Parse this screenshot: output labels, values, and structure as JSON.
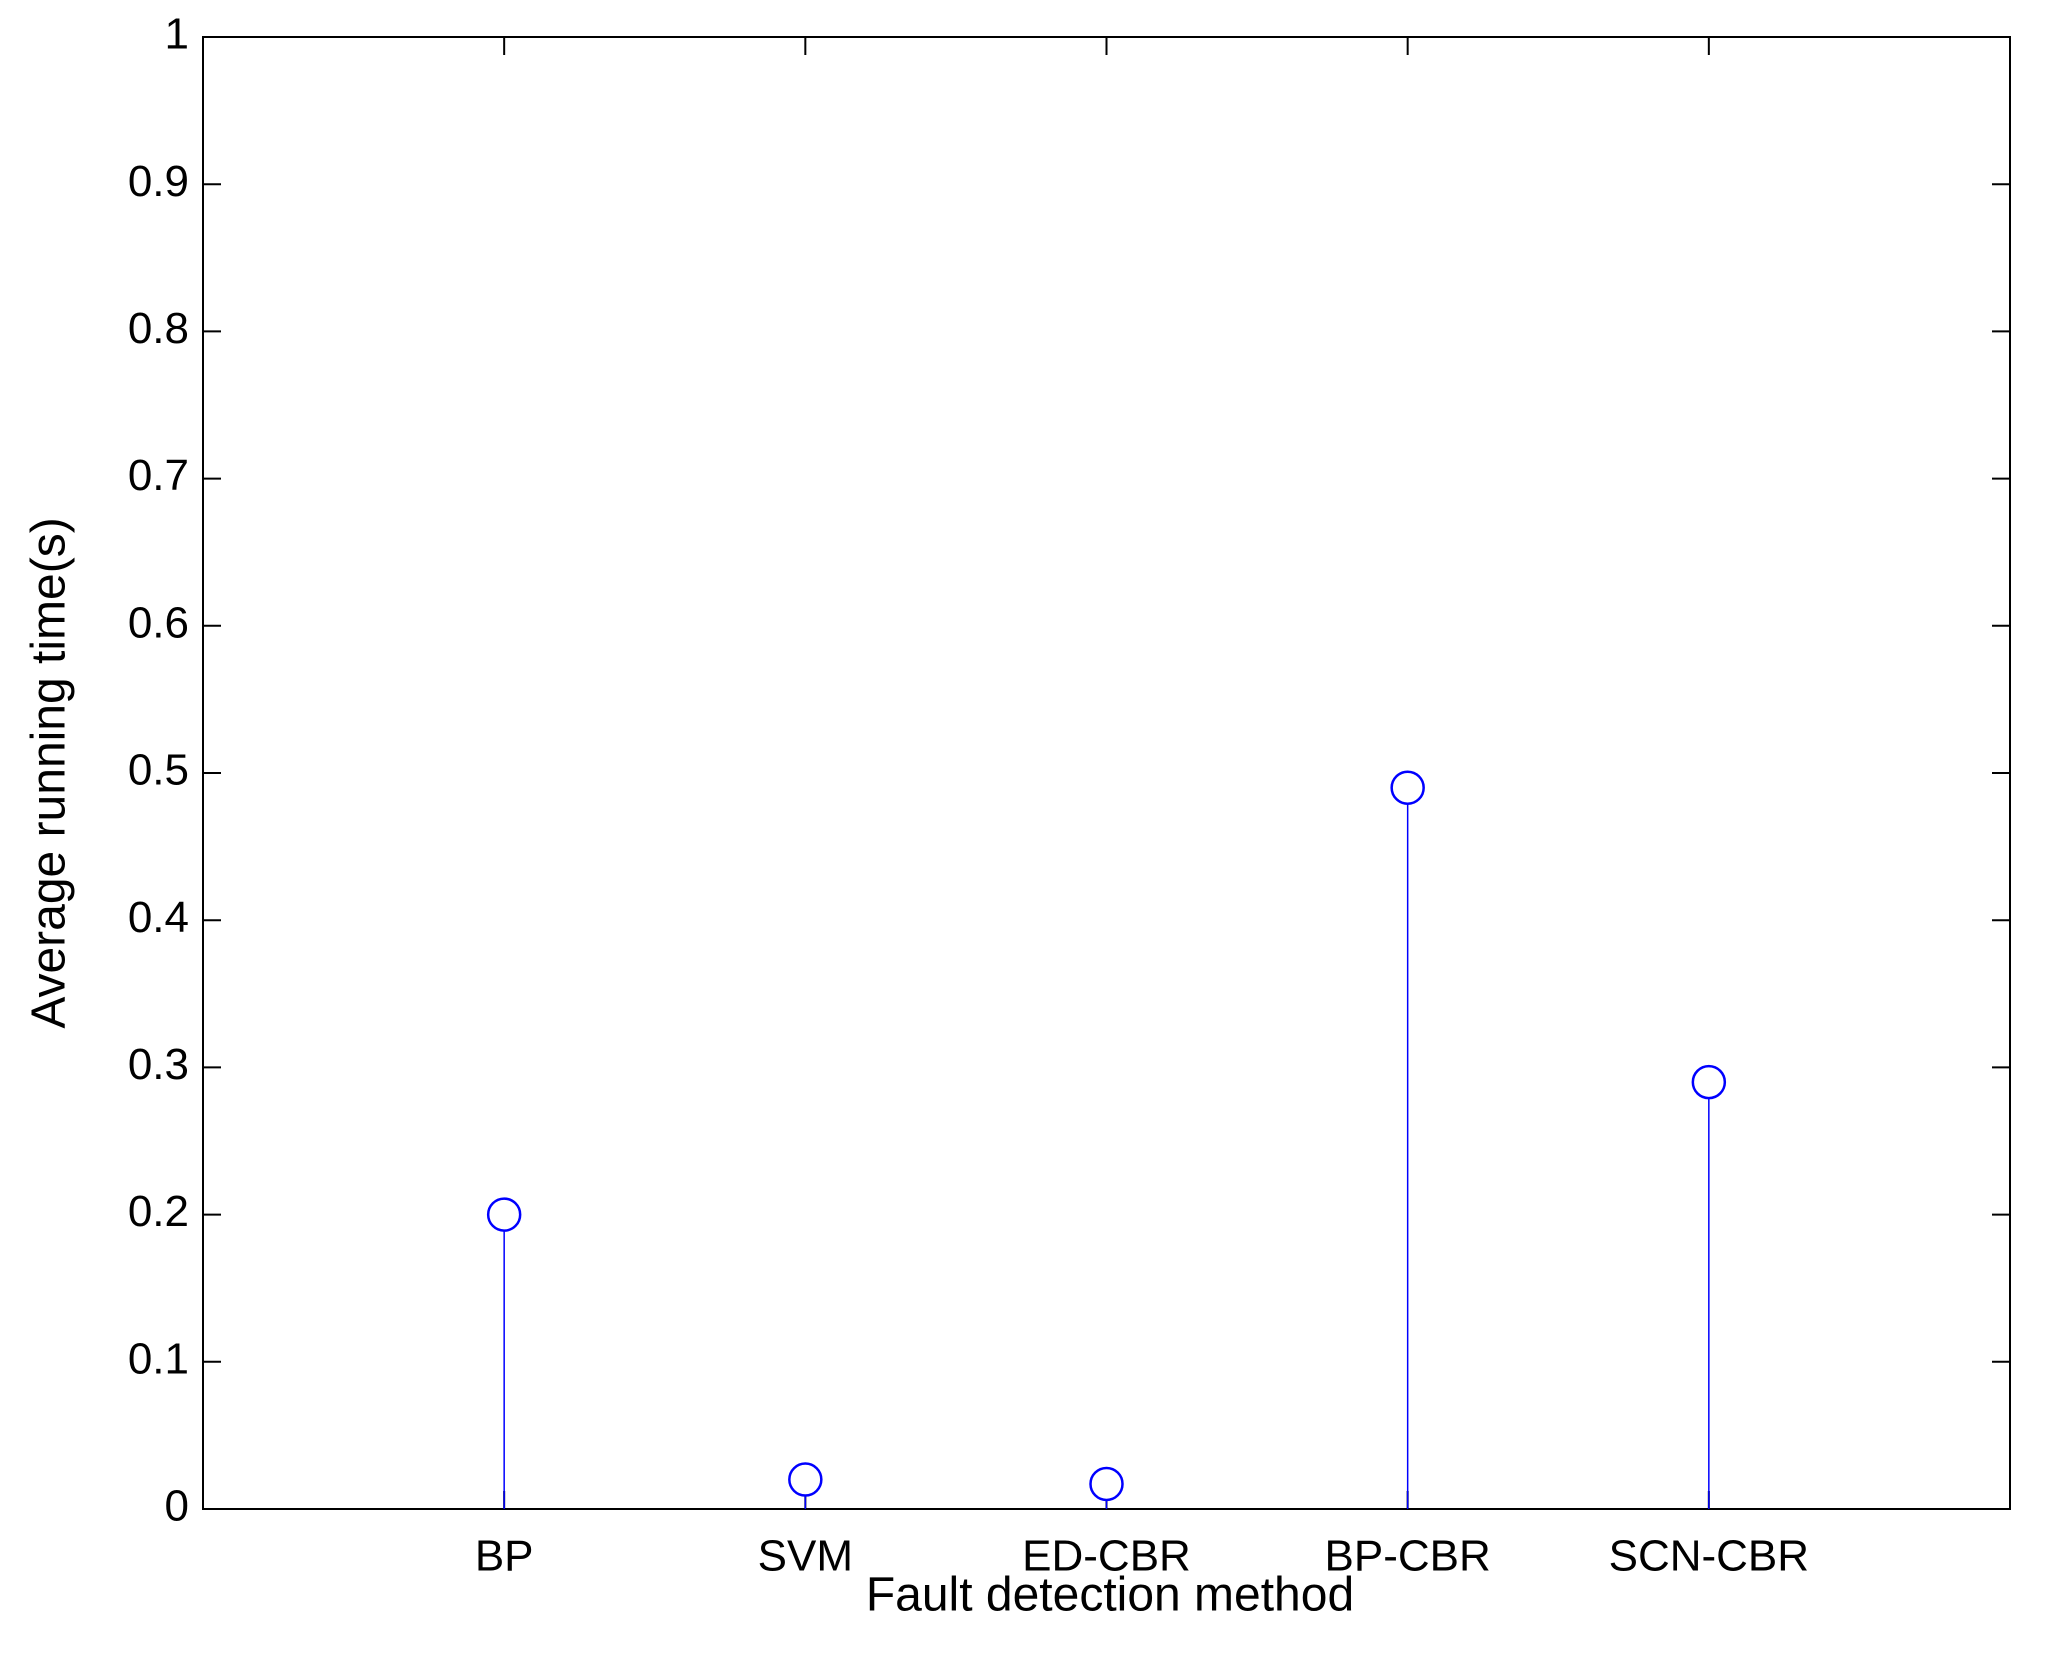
{
  "chart_data": {
    "type": "stem",
    "x_label": "Fault detection method",
    "y_label": "Average running time(s)",
    "categories": [
      "BP",
      "SVM",
      "ED-CBR",
      "BP-CBR",
      "SCN-CBR"
    ],
    "values": [
      0.2,
      0.02,
      0.017,
      0.49,
      0.29
    ],
    "color": "#0000ff",
    "ylim": [
      0,
      1
    ],
    "yticks": [
      0,
      0.1,
      0.2,
      0.3,
      0.4,
      0.5,
      0.6,
      0.7,
      0.8,
      0.9,
      1
    ],
    "grid": false
  }
}
